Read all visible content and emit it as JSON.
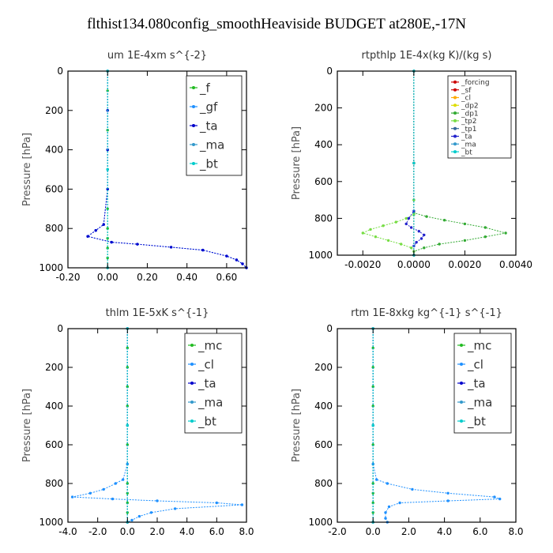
{
  "figure": {
    "title": "flthist134.080config_smoothHeaviside  BUDGET at280E,-17N"
  },
  "chart_data": [
    {
      "type": "line",
      "title": "um   1E-4xm s^{-2}",
      "xlabel": "",
      "ylabel": "Pressure [hPa]",
      "xlim": [
        -0.2,
        0.7
      ],
      "ylim": [
        1000,
        0
      ],
      "xticks": [
        "-0.20",
        "0.00",
        "0.20",
        "0.40",
        "0.60"
      ],
      "xtick_values": [
        -0.2,
        0.0,
        0.2,
        0.4,
        0.6
      ],
      "yticks": [
        "0",
        "200",
        "400",
        "600",
        "800",
        "1000"
      ],
      "ytick_values": [
        0,
        200,
        400,
        600,
        800,
        1000
      ],
      "legend_position": "top-right",
      "legend_font": 15,
      "series": [
        {
          "name": "_f",
          "color": "#22bb22",
          "x": [
            0,
            0,
            0,
            0,
            0,
            0,
            0,
            0,
            0,
            0,
            0,
            0,
            0
          ],
          "y": [
            0,
            100,
            200,
            300,
            400,
            500,
            600,
            700,
            800,
            850,
            900,
            950,
            1000
          ]
        },
        {
          "name": "_gf",
          "color": "#1e90ff",
          "x": [
            0,
            0,
            0,
            0,
            -0.02,
            -0.06,
            -0.1,
            0.02,
            0.15,
            0.32,
            0.48,
            0.6,
            0.65,
            0.68,
            0.7
          ],
          "y": [
            0,
            200,
            400,
            600,
            780,
            810,
            840,
            870,
            880,
            895,
            910,
            940,
            960,
            980,
            1000
          ]
        },
        {
          "name": "_ta",
          "color": "#0000cc",
          "x": [
            0,
            0,
            0,
            0,
            -0.02,
            -0.06,
            -0.1,
            0.02,
            0.15,
            0.32,
            0.48,
            0.6,
            0.65,
            0.68,
            0.7
          ],
          "y": [
            0,
            200,
            400,
            600,
            780,
            810,
            840,
            870,
            880,
            895,
            910,
            940,
            960,
            980,
            1000
          ]
        },
        {
          "name": "_ma",
          "color": "#3399cc",
          "x": [
            0,
            0,
            0
          ],
          "y": [
            0,
            500,
            1000
          ]
        },
        {
          "name": "_bt",
          "color": "#00cccc",
          "x": [
            0,
            0,
            0
          ],
          "y": [
            0,
            500,
            1000
          ]
        }
      ]
    },
    {
      "type": "line",
      "title": "rtpthlp   1E-4x(kg K)/(kg s)",
      "xlabel": "",
      "ylabel": "Pressure [hPa]",
      "xlim": [
        -0.003,
        0.004
      ],
      "ylim": [
        1000,
        0
      ],
      "xticks": [
        "-0.0020",
        "0.0000",
        "0.0020",
        "0.0040"
      ],
      "xtick_values": [
        -0.002,
        0.0,
        0.002,
        0.004
      ],
      "yticks": [
        "0",
        "200",
        "400",
        "600",
        "800",
        "1000"
      ],
      "ytick_values": [
        0,
        200,
        400,
        600,
        800,
        1000
      ],
      "legend_position": "top-right",
      "legend_font": 9,
      "series": [
        {
          "name": "_forcing",
          "color": "#cc0000",
          "x": [
            0,
            0,
            0
          ],
          "y": [
            0,
            500,
            1000
          ]
        },
        {
          "name": "_sf",
          "color": "#cc0000",
          "x": [
            0,
            0,
            0
          ],
          "y": [
            0,
            500,
            1000
          ]
        },
        {
          "name": "_cl",
          "color": "#ffaa00",
          "x": [
            0,
            0,
            0
          ],
          "y": [
            0,
            500,
            1000
          ]
        },
        {
          "name": "_dp2",
          "color": "#dddd00",
          "x": [
            0,
            0,
            0
          ],
          "y": [
            0,
            500,
            1000
          ]
        },
        {
          "name": "_dp1",
          "color": "#33aa33",
          "x": [
            0,
            0,
            0,
            0.0005,
            0.0012,
            0.002,
            0.0028,
            0.0036,
            0.0028,
            0.002,
            0.001,
            0.0004,
            0,
            0
          ],
          "y": [
            0,
            700,
            770,
            790,
            810,
            830,
            850,
            880,
            900,
            920,
            940,
            960,
            980,
            1000
          ]
        },
        {
          "name": "_tp2",
          "color": "#77dd44",
          "x": [
            0,
            0,
            0,
            -0.0003,
            -0.0007,
            -0.0012,
            -0.0017,
            -0.002,
            -0.0015,
            -0.001,
            -0.0005,
            -0.0001,
            0,
            0
          ],
          "y": [
            0,
            700,
            780,
            800,
            820,
            840,
            860,
            880,
            900,
            920,
            940,
            960,
            980,
            1000
          ]
        },
        {
          "name": "_tp1",
          "color": "#336699",
          "x": [
            0,
            0,
            0
          ],
          "y": [
            0,
            500,
            1000
          ]
        },
        {
          "name": "_ta",
          "color": "#2222cc",
          "x": [
            0,
            0,
            -0.0002,
            -0.0003,
            -0.0001,
            0.0002,
            0.0004,
            0.0003,
            0.0001,
            0,
            0
          ],
          "y": [
            0,
            760,
            800,
            830,
            850,
            870,
            890,
            910,
            930,
            950,
            1000
          ]
        },
        {
          "name": "_ma",
          "color": "#3399cc",
          "x": [
            0,
            0,
            0
          ],
          "y": [
            0,
            500,
            1000
          ]
        },
        {
          "name": "_bt",
          "color": "#00cccc",
          "x": [
            0,
            0,
            0
          ],
          "y": [
            0,
            500,
            1000
          ]
        }
      ]
    },
    {
      "type": "line",
      "title": "thlm   1E-5xK s^{-1}",
      "xlabel": "",
      "ylabel": "Pressure [hPa]",
      "xlim": [
        -4.0,
        8.0
      ],
      "ylim": [
        1000,
        0
      ],
      "xticks": [
        "-4.0",
        "-2.0",
        "0.0",
        "2.0",
        "4.0",
        "6.0",
        "8.0"
      ],
      "xtick_values": [
        -4,
        -2,
        0,
        2,
        4,
        6,
        8
      ],
      "yticks": [
        "0",
        "200",
        "400",
        "600",
        "800",
        "1000"
      ],
      "ytick_values": [
        0,
        200,
        400,
        600,
        800,
        1000
      ],
      "legend_position": "top-right",
      "legend_font": 15,
      "series": [
        {
          "name": "_mc",
          "color": "#22bb22",
          "x": [
            0,
            0,
            0,
            0,
            0,
            0,
            0,
            0,
            0,
            0,
            0,
            0,
            0
          ],
          "y": [
            0,
            100,
            200,
            300,
            400,
            500,
            600,
            700,
            800,
            850,
            900,
            950,
            1000
          ]
        },
        {
          "name": "_cl",
          "color": "#1e90ff",
          "x": [
            0,
            0,
            -0.3,
            -0.8,
            -1.6,
            -2.5,
            -3.7,
            -1.0,
            2.0,
            6.0,
            7.7,
            3.2,
            1.6,
            0.8,
            0.3,
            0
          ],
          "y": [
            0,
            700,
            780,
            800,
            830,
            850,
            870,
            880,
            890,
            900,
            910,
            930,
            950,
            970,
            990,
            1000
          ]
        },
        {
          "name": "_ta",
          "color": "#0000cc",
          "x": [
            0,
            0,
            0
          ],
          "y": [
            0,
            500,
            1000
          ]
        },
        {
          "name": "_ma",
          "color": "#3399cc",
          "x": [
            0,
            0,
            0
          ],
          "y": [
            0,
            500,
            1000
          ]
        },
        {
          "name": "_bt",
          "color": "#00cccc",
          "x": [
            0,
            0,
            0
          ],
          "y": [
            0,
            500,
            1000
          ]
        }
      ]
    },
    {
      "type": "line",
      "title": "rtm   1E-8xkg kg^{-1} s^{-1}",
      "xlabel": "",
      "ylabel": "Pressure [hPa]",
      "xlim": [
        -2.0,
        8.0
      ],
      "ylim": [
        1000,
        0
      ],
      "xticks": [
        "-2.0",
        "0.0",
        "2.0",
        "4.0",
        "6.0",
        "8.0"
      ],
      "xtick_values": [
        -2,
        0,
        2,
        4,
        6,
        8
      ],
      "yticks": [
        "0",
        "200",
        "400",
        "600",
        "800",
        "1000"
      ],
      "ytick_values": [
        0,
        200,
        400,
        600,
        800,
        1000
      ],
      "legend_position": "top-right",
      "legend_font": 15,
      "series": [
        {
          "name": "_mc",
          "color": "#22bb22",
          "x": [
            0,
            0,
            0,
            0,
            0,
            0,
            0,
            0,
            0,
            0,
            0,
            0,
            0
          ],
          "y": [
            0,
            100,
            200,
            300,
            400,
            500,
            600,
            700,
            800,
            850,
            900,
            950,
            1000
          ]
        },
        {
          "name": "_cl",
          "color": "#1e90ff",
          "x": [
            0,
            0,
            0.2,
            0.8,
            2.2,
            4.2,
            6.8,
            7.1,
            4.2,
            1.5,
            0.9,
            0.7,
            0.7,
            0.8
          ],
          "y": [
            0,
            700,
            780,
            800,
            830,
            850,
            870,
            880,
            890,
            900,
            920,
            950,
            980,
            1000
          ]
        },
        {
          "name": "_ta",
          "color": "#0000cc",
          "x": [
            0,
            0,
            0
          ],
          "y": [
            0,
            500,
            1000
          ]
        },
        {
          "name": "_ma",
          "color": "#3399cc",
          "x": [
            0,
            0,
            0
          ],
          "y": [
            0,
            500,
            1000
          ]
        },
        {
          "name": "_bt",
          "color": "#00cccc",
          "x": [
            0,
            0,
            0
          ],
          "y": [
            0,
            500,
            1000
          ]
        }
      ]
    }
  ]
}
